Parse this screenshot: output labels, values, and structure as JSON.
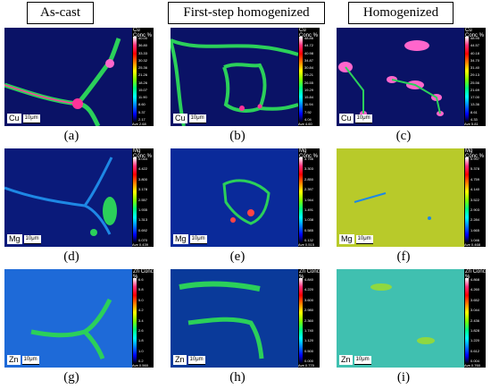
{
  "columns": [
    "As-cast",
    "First-step homogenized",
    "Homogenized"
  ],
  "scalebar": "10μm",
  "scale_unit": "Conc %",
  "elements": [
    "Cu",
    "Mg",
    "Zn"
  ],
  "panel_labels": [
    "(a)",
    "(b)",
    "(c)",
    "(d)",
    "(e)",
    "(f)",
    "(g)",
    "(h)",
    "(i)"
  ],
  "colorbars": {
    "cu_a": [
      "40.00",
      "36.80",
      "33.33",
      "30.32",
      "25.36",
      "21.26",
      "18.26",
      "15.07",
      "11.90",
      "8.60",
      "5.37",
      "2.17"
    ],
    "cu_b": [
      "48.86",
      "44.72",
      "40.98",
      "34.87",
      "30.84",
      "29.21",
      "26.55",
      "19.29",
      "15.84",
      "11.94",
      "7.92",
      "4.04"
    ],
    "cu_c": [
      "48.95",
      "44.57",
      "40.18",
      "34.70",
      "31.40",
      "29.13",
      "25.56",
      "21.69",
      "17.00",
      "13.36",
      "8.61",
      "4.33"
    ],
    "mg_a": [
      "5.044",
      "4.422",
      "3.800",
      "3.178",
      "2.557",
      "1.935",
      "1.313",
      "0.692",
      "0.070"
    ],
    "mg_b": [
      "3.756",
      "3.303",
      "2.850",
      "2.397",
      "1.944",
      "1.491",
      "1.038",
      "0.585",
      "0.132"
    ],
    "mg_c": [
      "5.997",
      "5.378",
      "4.759",
      "4.140",
      "3.522",
      "2.903",
      "2.284",
      "1.665",
      "1.046"
    ],
    "zn_a": [
      "6.6",
      "5.8",
      "5.0",
      "4.2",
      "3.4",
      "2.6",
      "1.8",
      "1.0",
      "0.2"
    ],
    "zn_b": [
      "4.840",
      "4.220",
      "3.600",
      "2.980",
      "2.360",
      "1.740",
      "1.120",
      "0.500",
      "0.000"
    ],
    "zn_c": [
      "4.868",
      "4.260",
      "3.652",
      "3.044",
      "2.436",
      "1.828",
      "1.220",
      "0.612",
      "0.004"
    ]
  },
  "averages": {
    "cu_a": "Ave 2.68",
    "cu_b": "Ave 4.60",
    "cu_c": "Ave 5.81",
    "mg_a": "Ave 0.439",
    "mg_b": "Ave 0.515",
    "mg_c": "Ave 0.468",
    "zn_a": "Ave 0.560",
    "zn_b": "Ave 0.770",
    "zn_c": "Ave 0.760"
  }
}
